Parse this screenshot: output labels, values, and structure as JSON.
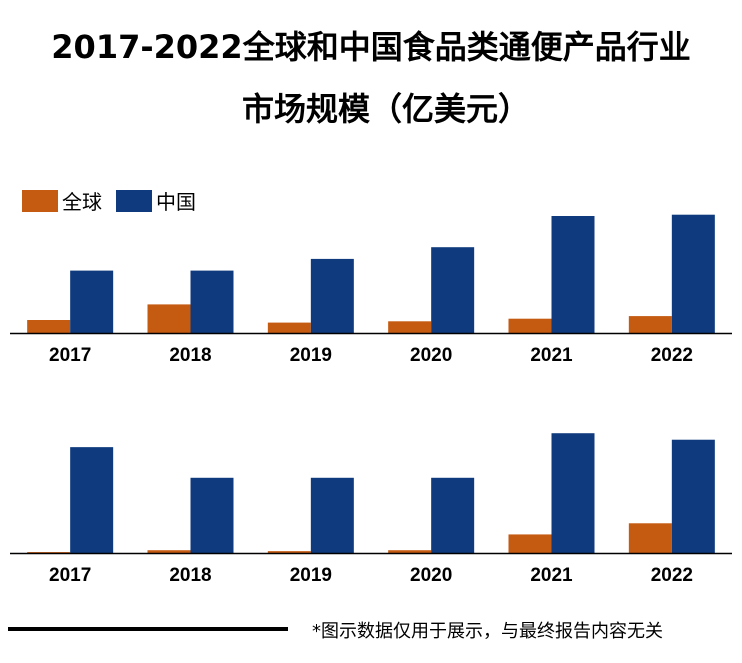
{
  "title": {
    "line1": "2017-2022全球和中国食品类通便产品行业",
    "line2": "市场规模（亿美元）"
  },
  "legend": [
    {
      "label": "全球",
      "color": "#C55A11"
    },
    {
      "label": "中国",
      "color": "#0F3A7D"
    }
  ],
  "footer_note": "*图示数据仅用于展示，与最终报告内容无关",
  "chart_data": [
    {
      "type": "bar",
      "categories": [
        "2017",
        "2018",
        "2019",
        "2020",
        "2021",
        "2022"
      ],
      "series": [
        {
          "name": "全球",
          "color": "#C55A11",
          "values": [
            10,
            22,
            8,
            9,
            11,
            13
          ]
        },
        {
          "name": "中国",
          "color": "#0F3A7D",
          "values": [
            48,
            48,
            57,
            66,
            90,
            91
          ]
        }
      ],
      "ylim": [
        0,
        100
      ],
      "grid": false
    },
    {
      "type": "bar",
      "categories": [
        "2017",
        "2018",
        "2019",
        "2020",
        "2021",
        "2022"
      ],
      "series": [
        {
          "name": "全球",
          "color": "#C55A11",
          "values": [
            1,
            3,
            2,
            3,
            20,
            32
          ]
        },
        {
          "name": "中国",
          "color": "#0F3A7D",
          "values": [
            114,
            81,
            81,
            81,
            129,
            122
          ]
        }
      ],
      "ylim": [
        0,
        140
      ],
      "grid": false
    }
  ]
}
